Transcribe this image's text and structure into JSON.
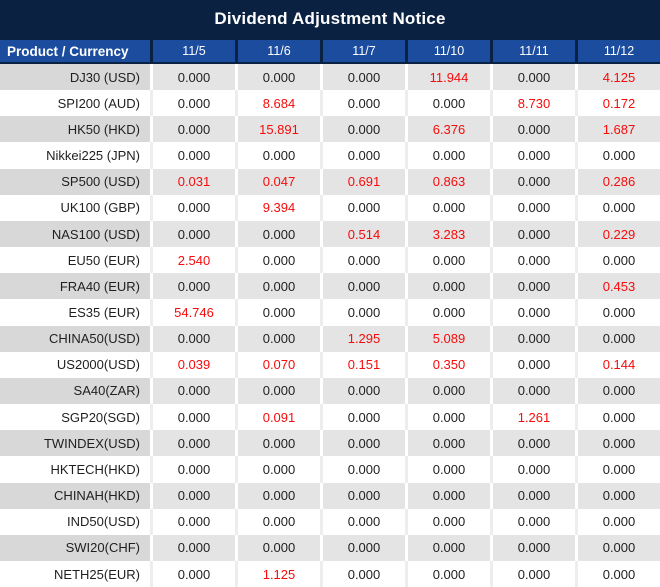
{
  "title": "Dividend Adjustment Notice",
  "colors": {
    "title_bg": "#0a2142",
    "header_bg": "#1b4c9e",
    "row_gray": "#e4e4e4",
    "product_gray": "#d8d8d8",
    "zero_text": "#1f1f1f",
    "nonzero_red": "#f70b0b"
  },
  "table": {
    "product_header": "Product / Currency",
    "date_headers": [
      "11/5",
      "11/6",
      "11/7",
      "11/10",
      "11/11",
      "11/12"
    ],
    "rows": [
      {
        "product": "DJ30 (USD)",
        "values": [
          "0.000",
          "0.000",
          "0.000",
          "11.944",
          "0.000",
          "4.125"
        ]
      },
      {
        "product": "SPI200 (AUD)",
        "values": [
          "0.000",
          "8.684",
          "0.000",
          "0.000",
          "8.730",
          "0.172"
        ]
      },
      {
        "product": "HK50 (HKD)",
        "values": [
          "0.000",
          "15.891",
          "0.000",
          "6.376",
          "0.000",
          "1.687"
        ]
      },
      {
        "product": "Nikkei225 (JPN)",
        "values": [
          "0.000",
          "0.000",
          "0.000",
          "0.000",
          "0.000",
          "0.000"
        ]
      },
      {
        "product": "SP500 (USD)",
        "values": [
          "0.031",
          "0.047",
          "0.691",
          "0.863",
          "0.000",
          "0.286"
        ]
      },
      {
        "product": "UK100 (GBP)",
        "values": [
          "0.000",
          "9.394",
          "0.000",
          "0.000",
          "0.000",
          "0.000"
        ]
      },
      {
        "product": "NAS100 (USD)",
        "values": [
          "0.000",
          "0.000",
          "0.514",
          "3.283",
          "0.000",
          "0.229"
        ]
      },
      {
        "product": "EU50 (EUR)",
        "values": [
          "2.540",
          "0.000",
          "0.000",
          "0.000",
          "0.000",
          "0.000"
        ]
      },
      {
        "product": "FRA40 (EUR)",
        "values": [
          "0.000",
          "0.000",
          "0.000",
          "0.000",
          "0.000",
          "0.453"
        ]
      },
      {
        "product": "ES35 (EUR)",
        "values": [
          "54.746",
          "0.000",
          "0.000",
          "0.000",
          "0.000",
          "0.000"
        ]
      },
      {
        "product": "CHINA50(USD)",
        "values": [
          "0.000",
          "0.000",
          "1.295",
          "5.089",
          "0.000",
          "0.000"
        ]
      },
      {
        "product": "US2000(USD)",
        "values": [
          "0.039",
          "0.070",
          "0.151",
          "0.350",
          "0.000",
          "0.144"
        ]
      },
      {
        "product": "SA40(ZAR)",
        "values": [
          "0.000",
          "0.000",
          "0.000",
          "0.000",
          "0.000",
          "0.000"
        ]
      },
      {
        "product": "SGP20(SGD)",
        "values": [
          "0.000",
          "0.091",
          "0.000",
          "0.000",
          "1.261",
          "0.000"
        ]
      },
      {
        "product": "TWINDEX(USD)",
        "values": [
          "0.000",
          "0.000",
          "0.000",
          "0.000",
          "0.000",
          "0.000"
        ]
      },
      {
        "product": "HKTECH(HKD)",
        "values": [
          "0.000",
          "0.000",
          "0.000",
          "0.000",
          "0.000",
          "0.000"
        ]
      },
      {
        "product": "CHINAH(HKD)",
        "values": [
          "0.000",
          "0.000",
          "0.000",
          "0.000",
          "0.000",
          "0.000"
        ]
      },
      {
        "product": "IND50(USD)",
        "values": [
          "0.000",
          "0.000",
          "0.000",
          "0.000",
          "0.000",
          "0.000"
        ]
      },
      {
        "product": "SWI20(CHF)",
        "values": [
          "0.000",
          "0.000",
          "0.000",
          "0.000",
          "0.000",
          "0.000"
        ]
      },
      {
        "product": "NETH25(EUR)",
        "values": [
          "0.000",
          "1.125",
          "0.000",
          "0.000",
          "0.000",
          "0.000"
        ]
      }
    ]
  }
}
